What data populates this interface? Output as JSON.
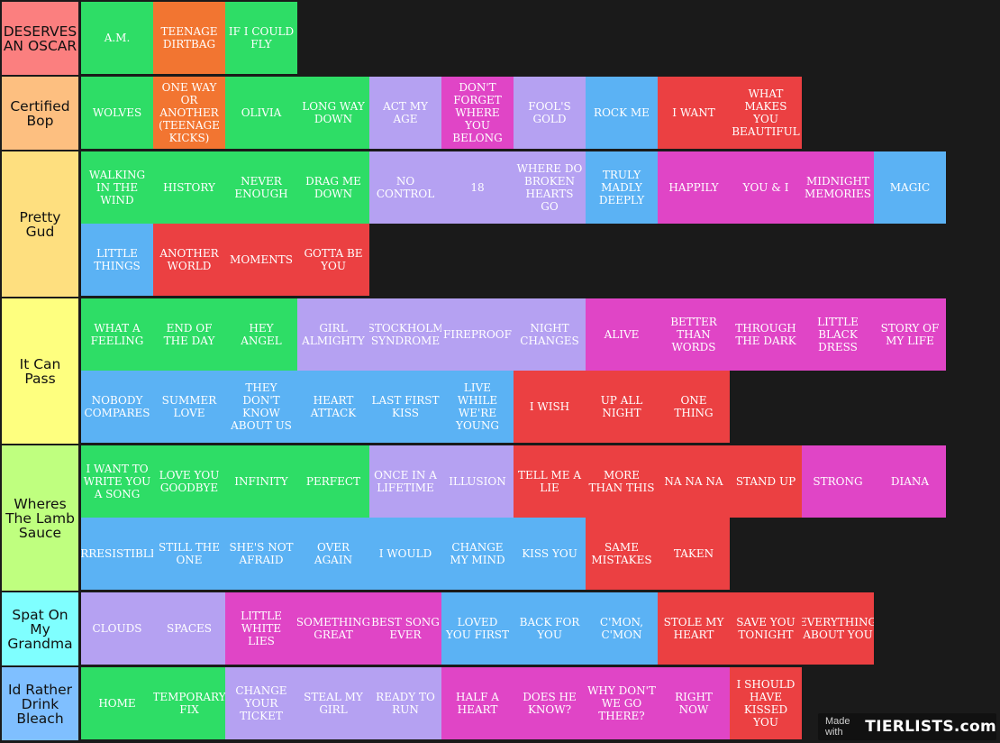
{
  "colors": {
    "green": "#2edd66",
    "orange": "#f27531",
    "purple": "#b5a1f2",
    "pink": "#e045c6",
    "blue": "#5bb2f4",
    "red": "#eb4042"
  },
  "tiers": [
    {
      "label": "DESERVES AN OSCAR",
      "color": "#fb7f7f",
      "items": [
        {
          "text": "A.M.",
          "color": "green"
        },
        {
          "text": "TEENAGE DIRTBAG",
          "color": "orange"
        },
        {
          "text": "IF I COULD FLY",
          "color": "green"
        }
      ]
    },
    {
      "label": "Certified Bop",
      "color": "#fdbf80",
      "items": [
        {
          "text": "WOLVES",
          "color": "green"
        },
        {
          "text": "ONE WAY OR ANOTHER (TEENAGE KICKS)",
          "color": "orange"
        },
        {
          "text": "OLIVIA",
          "color": "green"
        },
        {
          "text": "LONG WAY DOWN",
          "color": "green"
        },
        {
          "text": "ACT MY AGE",
          "color": "purple"
        },
        {
          "text": "DON'T FORGET WHERE YOU BELONG",
          "color": "pink"
        },
        {
          "text": "FOOL'S GOLD",
          "color": "purple"
        },
        {
          "text": "ROCK ME",
          "color": "blue"
        },
        {
          "text": "I WANT",
          "color": "red"
        },
        {
          "text": "WHAT MAKES YOU BEAUTIFUL",
          "color": "red"
        }
      ]
    },
    {
      "label": "Pretty Gud",
      "color": "#fedf7f",
      "items": [
        {
          "text": "WALKING IN THE WIND",
          "color": "green"
        },
        {
          "text": "HISTORY",
          "color": "green"
        },
        {
          "text": "NEVER ENOUGH",
          "color": "green"
        },
        {
          "text": "DRAG ME DOWN",
          "color": "green"
        },
        {
          "text": "NO CONTROL",
          "color": "purple"
        },
        {
          "text": "18",
          "color": "purple"
        },
        {
          "text": "WHERE DO BROKEN HEARTS GO",
          "color": "purple"
        },
        {
          "text": "TRULY MADLY DEEPLY",
          "color": "blue"
        },
        {
          "text": "HAPPILY",
          "color": "pink"
        },
        {
          "text": "YOU & I",
          "color": "pink"
        },
        {
          "text": "MIDNIGHT MEMORIES",
          "color": "pink"
        },
        {
          "text": "MAGIC",
          "color": "blue"
        },
        {
          "text": "LITTLE THINGS",
          "color": "blue"
        },
        {
          "text": "ANOTHER WORLD",
          "color": "red"
        },
        {
          "text": "MOMENTS",
          "color": "red"
        },
        {
          "text": "GOTTA BE YOU",
          "color": "red"
        }
      ]
    },
    {
      "label": "It Can Pass",
      "color": "#feff7f",
      "items": [
        {
          "text": "WHAT A FEELING",
          "color": "green"
        },
        {
          "text": "END OF THE DAY",
          "color": "green"
        },
        {
          "text": "HEY ANGEL",
          "color": "green"
        },
        {
          "text": "GIRL ALMIGHTY",
          "color": "purple"
        },
        {
          "text": "STOCKHOLM SYNDROME",
          "color": "purple"
        },
        {
          "text": "FIREPROOF",
          "color": "purple"
        },
        {
          "text": "NIGHT CHANGES",
          "color": "purple"
        },
        {
          "text": "ALIVE",
          "color": "pink"
        },
        {
          "text": "BETTER THAN WORDS",
          "color": "pink"
        },
        {
          "text": "THROUGH THE DARK",
          "color": "pink"
        },
        {
          "text": "LITTLE BLACK DRESS",
          "color": "pink"
        },
        {
          "text": "STORY OF MY LIFE",
          "color": "pink"
        },
        {
          "text": "NOBODY COMPARES",
          "color": "blue"
        },
        {
          "text": "SUMMER LOVE",
          "color": "blue"
        },
        {
          "text": "THEY DON'T KNOW ABOUT US",
          "color": "blue"
        },
        {
          "text": "HEART ATTACK",
          "color": "blue"
        },
        {
          "text": "LAST FIRST KISS",
          "color": "blue"
        },
        {
          "text": "LIVE WHILE WE'RE YOUNG",
          "color": "blue"
        },
        {
          "text": "I WISH",
          "color": "red"
        },
        {
          "text": "UP ALL NIGHT",
          "color": "red"
        },
        {
          "text": "ONE THING",
          "color": "red"
        }
      ]
    },
    {
      "label": "Wheres The Lamb Sauce",
      "color": "#bfff7f",
      "items": [
        {
          "text": "I WANT TO WRITE YOU A SONG",
          "color": "green"
        },
        {
          "text": "LOVE YOU GOODBYE",
          "color": "green"
        },
        {
          "text": "INFINITY",
          "color": "green"
        },
        {
          "text": "PERFECT",
          "color": "green"
        },
        {
          "text": "ONCE IN A LIFETIME",
          "color": "purple"
        },
        {
          "text": "ILLUSION",
          "color": "purple"
        },
        {
          "text": "TELL ME A LIE",
          "color": "red"
        },
        {
          "text": "MORE THAN THIS",
          "color": "red"
        },
        {
          "text": "NA NA NA",
          "color": "red"
        },
        {
          "text": "STAND UP",
          "color": "red"
        },
        {
          "text": "STRONG",
          "color": "pink"
        },
        {
          "text": "DIANA",
          "color": "pink"
        },
        {
          "text": "IRRESISTIBLE",
          "color": "blue"
        },
        {
          "text": "STILL THE ONE",
          "color": "blue"
        },
        {
          "text": "SHE'S NOT AFRAID",
          "color": "blue"
        },
        {
          "text": "OVER AGAIN",
          "color": "blue"
        },
        {
          "text": "I WOULD",
          "color": "blue"
        },
        {
          "text": "CHANGE MY MIND",
          "color": "blue"
        },
        {
          "text": "KISS YOU",
          "color": "blue"
        },
        {
          "text": "SAME MISTAKES",
          "color": "red"
        },
        {
          "text": "TAKEN",
          "color": "red"
        }
      ]
    },
    {
      "label": "Spat On My Grandma",
      "color": "#7fffff",
      "items": [
        {
          "text": "CLOUDS",
          "color": "purple"
        },
        {
          "text": "SPACES",
          "color": "purple"
        },
        {
          "text": "LITTLE WHITE LIES",
          "color": "pink"
        },
        {
          "text": "SOMETHING GREAT",
          "color": "pink"
        },
        {
          "text": "BEST SONG EVER",
          "color": "pink"
        },
        {
          "text": "LOVED YOU FIRST",
          "color": "blue"
        },
        {
          "text": "BACK FOR YOU",
          "color": "blue"
        },
        {
          "text": "C'MON, C'MON",
          "color": "blue"
        },
        {
          "text": "STOLE MY HEART",
          "color": "red"
        },
        {
          "text": "SAVE YOU TONIGHT",
          "color": "red"
        },
        {
          "text": "EVERYTHING ABOUT YOU",
          "color": "red"
        }
      ]
    },
    {
      "label": "Id Rather Drink Bleach",
      "color": "#7fbfff",
      "items": [
        {
          "text": "HOME",
          "color": "green"
        },
        {
          "text": "TEMPORARY FIX",
          "color": "green"
        },
        {
          "text": "CHANGE YOUR TICKET",
          "color": "purple"
        },
        {
          "text": "STEAL MY GIRL",
          "color": "purple"
        },
        {
          "text": "READY TO RUN",
          "color": "purple"
        },
        {
          "text": "HALF A HEART",
          "color": "pink"
        },
        {
          "text": "DOES HE KNOW?",
          "color": "pink"
        },
        {
          "text": "WHY DON'T WE GO THERE?",
          "color": "pink"
        },
        {
          "text": "RIGHT NOW",
          "color": "pink"
        },
        {
          "text": "I SHOULD HAVE KISSED YOU",
          "color": "red"
        }
      ]
    }
  ],
  "footer": {
    "made_with": "Made with",
    "brand": "TIERLISTS.com"
  }
}
